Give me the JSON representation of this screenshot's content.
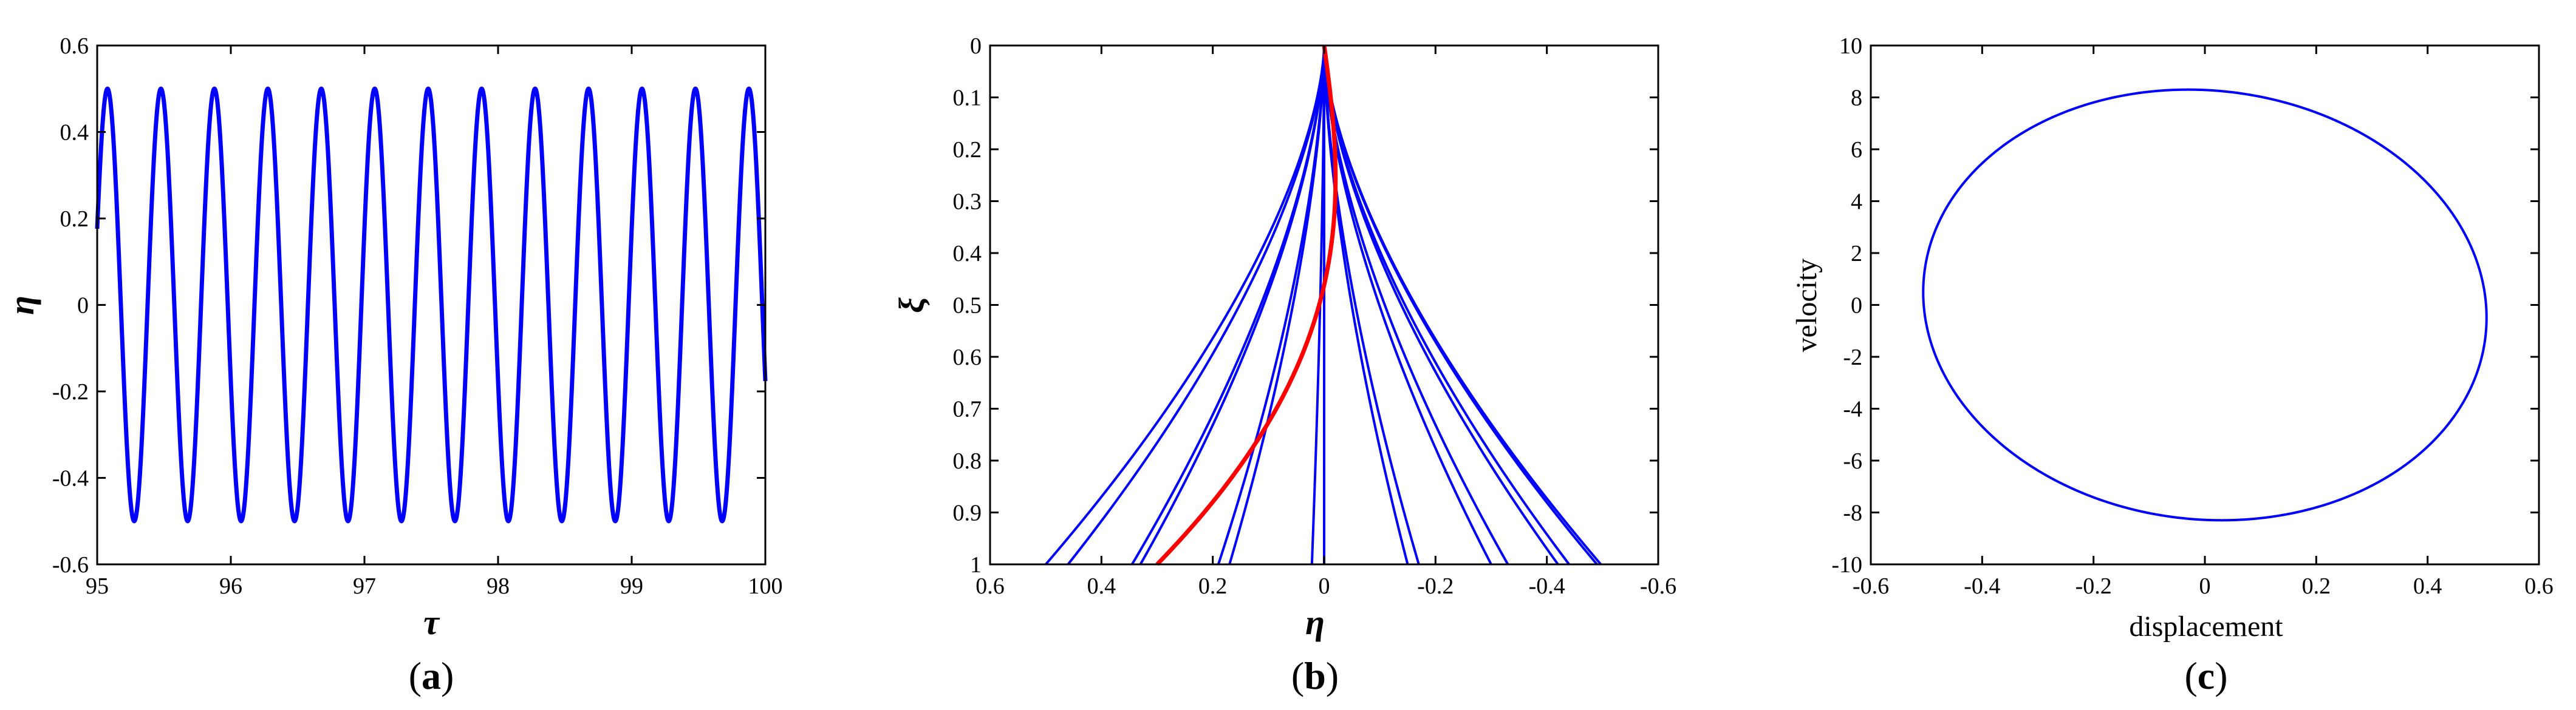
{
  "colors": {
    "main_series": "#0000ff",
    "highlight_series": "#ff0000",
    "axes": "#000000"
  },
  "chart_data": [
    {
      "type": "line",
      "panel": "(a)",
      "panel_letter": "a",
      "xlabel": "τ",
      "ylabel": "η",
      "xlim": [
        95,
        100
      ],
      "ylim": [
        -0.6,
        0.6
      ],
      "xticks": [
        "95",
        "96",
        "97",
        "98",
        "99",
        "100"
      ],
      "yticks": [
        "0.6",
        "0.4",
        "0.2",
        "0",
        "-0.2",
        "-0.4",
        "-0.6"
      ],
      "grid": false,
      "series": [
        {
          "function": "0.5*sin(2*pi*(tau-95)/0.4 + 0.36)",
          "amplitude": 0.5,
          "period": 0.4,
          "x_range": [
            95,
            100
          ]
        }
      ]
    },
    {
      "type": "line",
      "panel": "(b)",
      "panel_letter": "b",
      "xlabel": "η",
      "ylabel": "ξ",
      "xlim": [
        0.6,
        -0.6
      ],
      "ylim": [
        1,
        0
      ],
      "xticks": [
        "0.6",
        "0.4",
        "0.2",
        "0",
        "-0.2",
        "-0.4",
        "-0.6"
      ],
      "yticks": [
        "0",
        "0.1",
        "0.2",
        "0.3",
        "0.4",
        "0.5",
        "0.6",
        "0.7",
        "0.8",
        "0.9",
        "1"
      ],
      "grid": false,
      "mode_shape": "0.5*xi^1.6",
      "series": [
        {
          "color": "blue",
          "snapshots": 16,
          "values_at_xi_1": [
            0.5,
            0.46,
            0.345,
            0.19,
            0.022,
            -0.15,
            -0.3,
            -0.42,
            -0.49,
            -0.497,
            -0.44,
            -0.33,
            -0.17,
            0.0,
            0.17,
            0.33
          ]
        },
        {
          "color": "red",
          "description_shape": "thick highlighted curve",
          "values_at_xi_1": [
            0.3
          ]
        }
      ]
    },
    {
      "type": "line",
      "panel": "(c)",
      "panel_letter": "c",
      "xlabel": "displacement",
      "ylabel": "velocity",
      "xlim": [
        -0.6,
        0.6
      ],
      "ylim": [
        -10,
        10
      ],
      "xticks": [
        "-0.6",
        "-0.4",
        "-0.2",
        "0",
        "0.2",
        "0.4",
        "0.6"
      ],
      "yticks": [
        "10",
        "8",
        "6",
        "4",
        "2",
        "0",
        "-2",
        "-4",
        "-6",
        "-8",
        "-10"
      ],
      "grid": false,
      "series": [
        {
          "shape": "closed ellipse",
          "displacement_amplitude": 0.505,
          "velocity_amplitude": 8.3,
          "velocity_peak_displacement": -0.03
        }
      ]
    }
  ]
}
